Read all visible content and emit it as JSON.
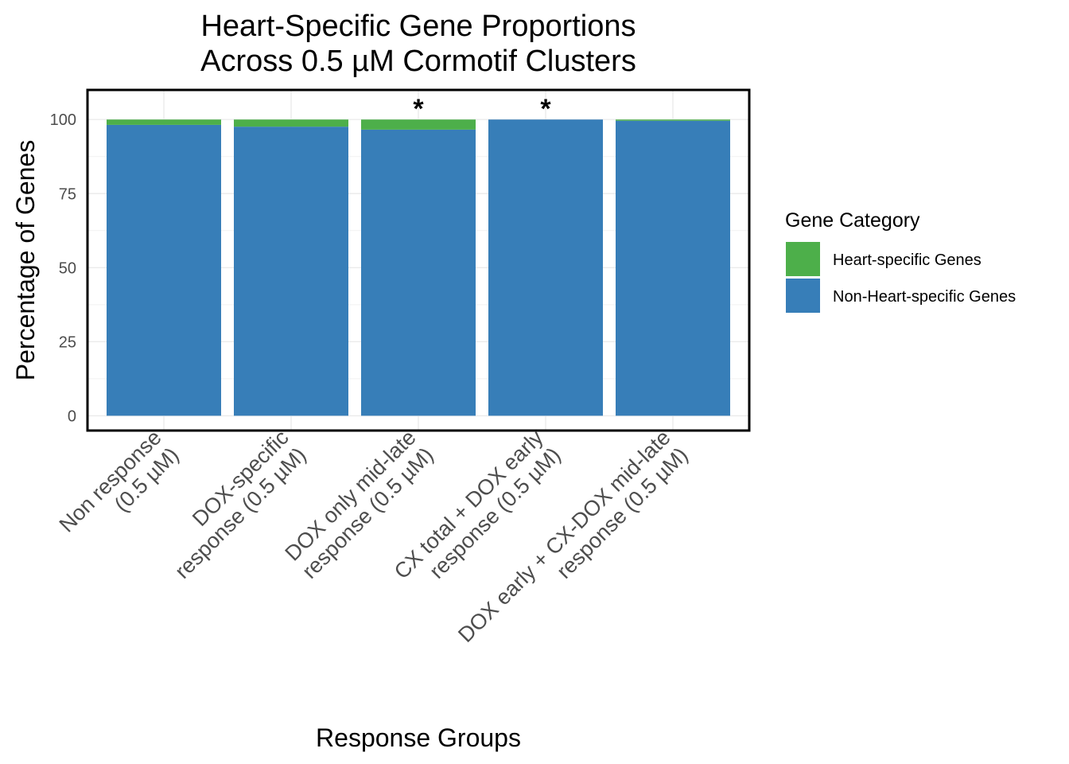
{
  "chart_data": {
    "type": "bar",
    "stacked": true,
    "title": [
      "Heart-Specific Gene Proportions",
      "Across 0.5 µM Cormotif Clusters"
    ],
    "xlabel": "Response Groups",
    "ylabel": "Percentage of Genes",
    "ylim": [
      -5,
      110
    ],
    "yticks": [
      0,
      25,
      50,
      75,
      100
    ],
    "grid": true,
    "categories": [
      [
        "Non response",
        "(0.5 µM)"
      ],
      [
        "DOX-specific",
        "response (0.5 µM)"
      ],
      [
        "DOX only mid-late",
        "response (0.5 µM)"
      ],
      [
        "CX total + DOX early",
        "response (0.5 µM)"
      ],
      [
        "DOX early + CX-DOX mid-late",
        "response (0.5 µM)"
      ]
    ],
    "series": [
      {
        "name": "Non-Heart-specific Genes",
        "color": "#377EB8",
        "values": [
          98.2,
          97.6,
          96.6,
          100.0,
          99.6
        ]
      },
      {
        "name": "Heart-specific Genes",
        "color": "#4DAF4A",
        "values": [
          1.8,
          2.4,
          3.4,
          0.0,
          0.4
        ]
      }
    ],
    "annotations": [
      "",
      "",
      "*",
      "*",
      ""
    ],
    "legend": {
      "title": "Gene Category",
      "position": "right",
      "entries": [
        "Heart-specific Genes",
        "Non-Heart-specific Genes"
      ]
    }
  }
}
